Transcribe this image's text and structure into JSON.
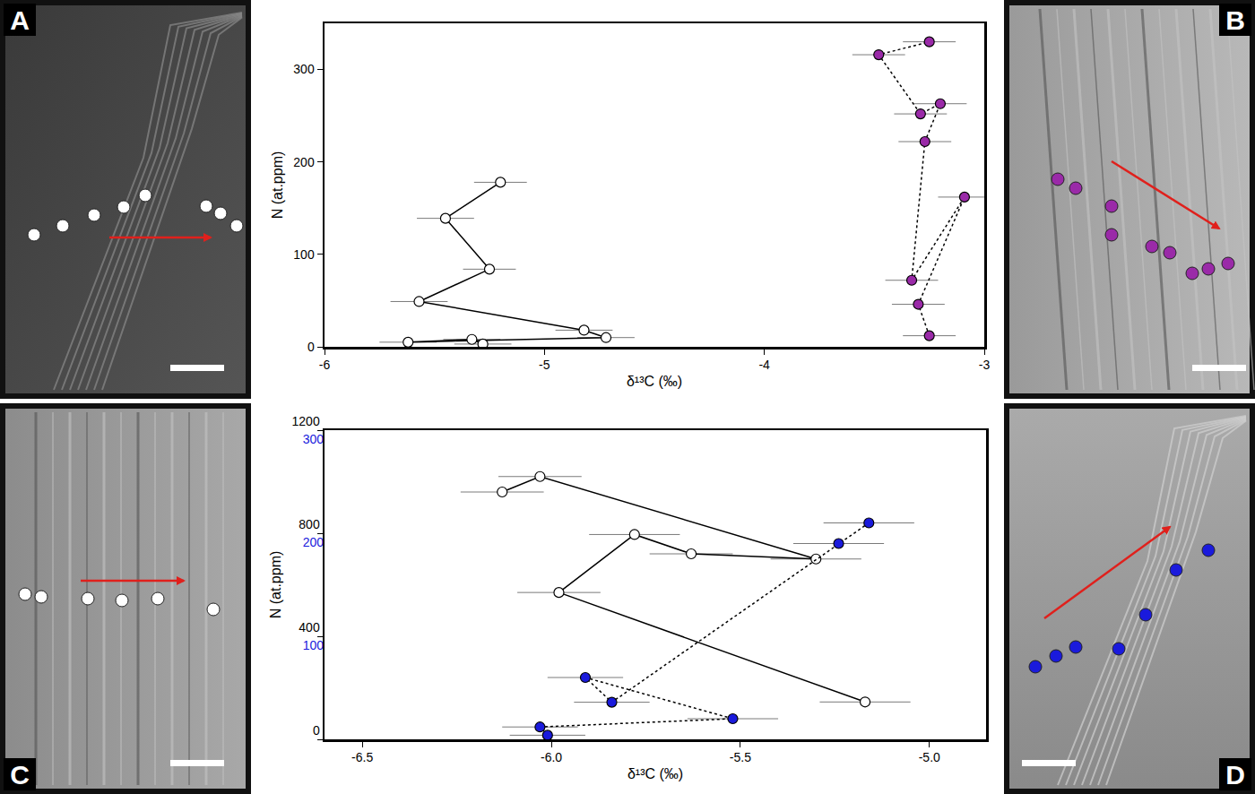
{
  "panels": [
    "A",
    "B",
    "C",
    "D"
  ],
  "chart_data": [
    {
      "type": "scatter",
      "x_label": "δ¹³C (‰)",
      "y_label": "N (at.ppm)",
      "xlim": [
        -6,
        -3
      ],
      "xticks": [
        -6,
        -5,
        -4,
        -3
      ],
      "ylim": [
        0,
        350
      ],
      "yticks": [
        0,
        100,
        200,
        300
      ],
      "grid": false,
      "series": [
        {
          "color": "#ffffff",
          "marker": "circle",
          "line_style": "solid",
          "x": [
            -5.28,
            -5.33,
            -5.62,
            -4.72,
            -4.82,
            -5.57,
            -5.25,
            -5.45,
            -5.2
          ],
          "values": [
            3,
            8,
            5,
            10,
            18,
            49,
            84,
            139,
            178
          ],
          "x_error": [
            0.13,
            0.13,
            0.13,
            0.13,
            0.13,
            0.13,
            0.12,
            0.13,
            0.12
          ]
        },
        {
          "color": "#9a2aa8",
          "marker": "circle",
          "line_style": "dotted",
          "x": [
            -3.25,
            -3.3,
            -3.09,
            -3.33,
            -3.27,
            -3.2,
            -3.29,
            -3.48,
            -3.25
          ],
          "values": [
            12,
            46,
            162,
            72,
            222,
            263,
            252,
            316,
            330
          ],
          "x_error": [
            0.12,
            0.12,
            0.12,
            0.12,
            0.12,
            0.12,
            0.12,
            0.12,
            0.12
          ]
        }
      ]
    },
    {
      "type": "scatter",
      "x_label": "δ¹³C (‰)",
      "y_label": "N (at.ppm)",
      "xlim": [
        -6.6,
        -4.85
      ],
      "xticks": [
        -6.5,
        {
          "value": -6,
          "label": "-6.0"
        },
        -5.5,
        {
          "value": -5,
          "label": "-5.0"
        }
      ],
      "ylim": [
        0,
        1200
      ],
      "yticks": [
        0,
        400,
        800,
        1200
      ],
      "y2lim": [
        0,
        300
      ],
      "y2ticks": [
        100,
        200,
        300
      ],
      "grid": false,
      "series": [
        {
          "color": "#ffffff",
          "marker": "circle",
          "line_style": "solid",
          "x": [
            -6.13,
            -6.03,
            -5.3,
            -5.63,
            -5.78,
            -5.98,
            -5.17
          ],
          "values": [
            960,
            1020,
            700,
            720,
            795,
            570,
            145
          ],
          "x_error": [
            0.11,
            0.11,
            0.12,
            0.11,
            0.12,
            0.11,
            0.12
          ]
        },
        {
          "color": "#1a1adc",
          "marker": "circle",
          "line_style": "dotted",
          "axis": "y2",
          "x": [
            -6.01,
            -6.03,
            -5.52,
            -5.91,
            -5.84,
            -5.24,
            -5.16
          ],
          "values": [
            4,
            12,
            20,
            60,
            36,
            190,
            210
          ],
          "x_error": [
            0.1,
            0.1,
            0.12,
            0.1,
            0.1,
            0.12,
            0.12
          ]
        }
      ]
    }
  ]
}
